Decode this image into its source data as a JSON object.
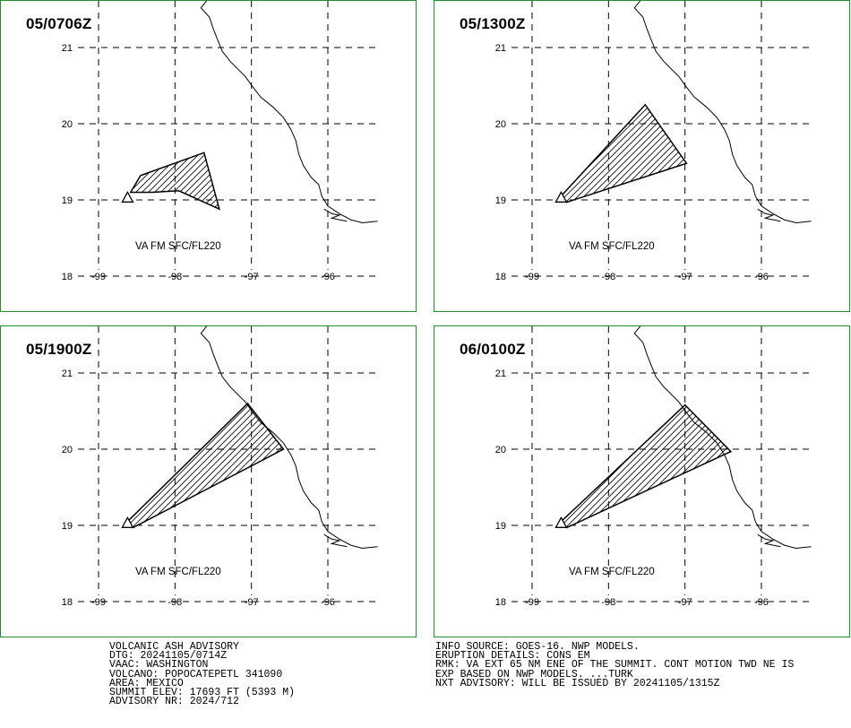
{
  "panels": [
    {
      "time": "05/0706Z",
      "va_label": "VA FM SFC/FL220",
      "polygon": [
        [
          -98.58,
          19.1
        ],
        [
          -98.45,
          19.32
        ],
        [
          -97.62,
          19.62
        ],
        [
          -97.42,
          18.88
        ],
        [
          -97.95,
          19.12
        ],
        [
          -98.3,
          19.1
        ]
      ]
    },
    {
      "time": "05/1300Z",
      "va_label": "VA FM SFC/FL220",
      "polygon": [
        [
          -98.62,
          19.05
        ],
        [
          -97.52,
          20.25
        ],
        [
          -96.98,
          19.48
        ],
        [
          -98.55,
          18.97
        ]
      ]
    },
    {
      "time": "05/1900Z",
      "va_label": "VA FM SFC/FL220",
      "polygon": [
        [
          -98.62,
          19.05
        ],
        [
          -97.05,
          20.6
        ],
        [
          -96.58,
          20.0
        ],
        [
          -98.55,
          18.97
        ]
      ]
    },
    {
      "time": "06/0100Z",
      "va_label": "VA FM SFC/FL220",
      "polygon": [
        [
          -98.62,
          19.05
        ],
        [
          -97.0,
          20.58
        ],
        [
          -96.4,
          19.97
        ],
        [
          -98.55,
          18.97
        ]
      ]
    }
  ],
  "axes": {
    "lat_ticks": [
      "21",
      "20",
      "19",
      "18"
    ],
    "lon_ticks": [
      "-99",
      "-98",
      "-97",
      "-96"
    ]
  },
  "volcano": {
    "lon": -98.62,
    "lat": 19.02
  },
  "advisory_left": [
    "VOLCANIC ASH ADVISORY",
    "DTG: 20241105/0714Z",
    "VAAC: WASHINGTON",
    "VOLCANO: POPOCATEPETL 341090",
    "AREA: MEXICO",
    "SUMMIT ELEV: 17693 FT (5393 M)",
    "ADVISORY NR: 2024/712"
  ],
  "advisory_right": [
    "INFO SOURCE: GOES-16. NWP MODELS.",
    "ERUPTION DETAILS: CONS EM",
    "RMK: VA EXT 65 NM ENE OF THE SUMMIT. CONT MOTION TWD NE IS",
    "EXP BASED ON NWP MODELS. ...TURK",
    "NXT ADVISORY: WILL BE ISSUED BY 20241105/1315Z"
  ],
  "colors": {
    "frame": "#1f8f2f",
    "lines": "#000000"
  }
}
